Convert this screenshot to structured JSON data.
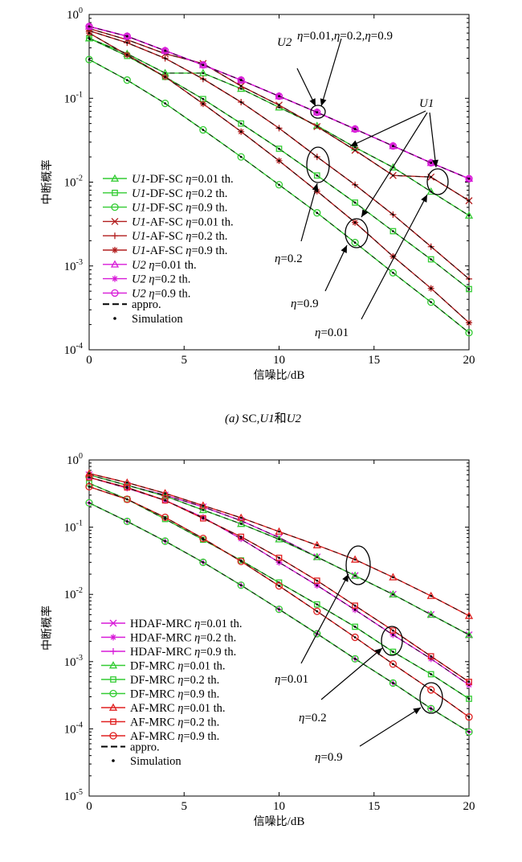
{
  "chart_data": [
    {
      "id": "a",
      "type": "line",
      "caption": "(a)  SC,U1和U2",
      "xlabel": "信噪比/dB",
      "ylabel": "中断概率",
      "xlim": [
        0,
        20
      ],
      "ylim": [
        0.0001,
        1
      ],
      "yscale": "log",
      "xticks": [
        "0",
        "5",
        "10",
        "15",
        "20"
      ],
      "yticks": [
        {
          "base": "10",
          "exp": "0"
        },
        {
          "base": "10",
          "exp": "-1"
        },
        {
          "base": "10",
          "exp": "-2"
        },
        {
          "base": "10",
          "exp": "-3"
        },
        {
          "base": "10",
          "exp": "-4"
        }
      ],
      "grid": false,
      "legend_position": "bottom-left",
      "x": [
        0,
        2,
        4,
        6,
        8,
        10,
        12,
        14,
        16,
        18,
        20
      ],
      "series": [
        {
          "name": "U1-DF-SC η=0.01 th.",
          "color": "#33cc33",
          "marker": "triangle",
          "values": [
            0.52,
            0.34,
            0.2,
            0.2,
            0.13,
            0.078,
            0.047,
            0.026,
            0.015,
            0.0077,
            0.004
          ]
        },
        {
          "name": "U1-DF-SC η=0.2 th.",
          "color": "#33cc33",
          "marker": "square",
          "values": [
            0.52,
            0.32,
            0.18,
            0.098,
            0.05,
            0.025,
            0.012,
            0.0057,
            0.0026,
            0.0012,
            0.00053
          ]
        },
        {
          "name": "U1-DF-SC η=0.9 th.",
          "color": "#33cc33",
          "marker": "circle",
          "values": [
            0.29,
            0.165,
            0.087,
            0.042,
            0.02,
            0.0093,
            0.0043,
            0.0019,
            0.00083,
            0.00037,
            0.00016
          ]
        },
        {
          "name": "U1-AF-SC η=0.01 th.",
          "color": "#b21e1e",
          "marker": "x",
          "values": [
            0.68,
            0.5,
            0.34,
            0.26,
            0.14,
            0.083,
            0.046,
            0.024,
            0.012,
            0.0115,
            0.006
          ]
        },
        {
          "name": "U1-AF-SC η=0.2 th.",
          "color": "#b21e1e",
          "marker": "plus",
          "values": [
            0.64,
            0.46,
            0.3,
            0.17,
            0.09,
            0.044,
            0.02,
            0.0093,
            0.0041,
            0.0017,
            0.0007
          ]
        },
        {
          "name": "U1-AF-SC η=0.9 th.",
          "color": "#b21e1e",
          "marker": "star",
          "values": [
            0.6,
            0.33,
            0.18,
            0.086,
            0.04,
            0.018,
            0.0078,
            0.0033,
            0.0013,
            0.00054,
            0.00021
          ]
        },
        {
          "name": "U2 η=0.01 th.",
          "color": "#d81bd8",
          "marker": "triangle",
          "values": [
            0.72,
            0.55,
            0.37,
            0.25,
            0.165,
            0.106,
            0.068,
            0.043,
            0.027,
            0.017,
            0.011
          ]
        },
        {
          "name": "U2 η=0.2 th.",
          "color": "#d81bd8",
          "marker": "star",
          "values": [
            0.72,
            0.55,
            0.37,
            0.25,
            0.165,
            0.106,
            0.068,
            0.043,
            0.027,
            0.017,
            0.011
          ]
        },
        {
          "name": "U2 η=0.9 th.",
          "color": "#d81bd8",
          "marker": "circle",
          "values": [
            0.72,
            0.55,
            0.37,
            0.25,
            0.165,
            0.106,
            0.068,
            0.043,
            0.027,
            0.017,
            0.011
          ]
        }
      ],
      "legend_extra": [
        {
          "name": "appro.",
          "style": "dashed"
        },
        {
          "name": "Simulation",
          "style": "dot"
        }
      ],
      "annotations": [
        {
          "text": "U2",
          "italic": true
        },
        {
          "text": "η=0.01,η=0.2,η=0.9"
        },
        {
          "text": "U1",
          "italic": true
        },
        {
          "text": "η=0.2"
        },
        {
          "text": "η=0.9"
        },
        {
          "text": "η=0.01"
        }
      ]
    },
    {
      "id": "b",
      "type": "line",
      "xlabel": "信噪比/dB",
      "ylabel": "中断概率",
      "xlim": [
        0,
        20
      ],
      "ylim": [
        1e-05,
        1
      ],
      "yscale": "log",
      "xticks": [
        "0",
        "5",
        "10",
        "15",
        "20"
      ],
      "yticks": [
        {
          "base": "10",
          "exp": "0"
        },
        {
          "base": "10",
          "exp": "-1"
        },
        {
          "base": "10",
          "exp": "-2"
        },
        {
          "base": "10",
          "exp": "-3"
        },
        {
          "base": "10",
          "exp": "-4"
        },
        {
          "base": "10",
          "exp": "-5"
        }
      ],
      "grid": false,
      "legend_position": "bottom-left",
      "x": [
        0,
        2,
        4,
        6,
        8,
        10,
        12,
        14,
        16,
        18,
        20
      ],
      "series": [
        {
          "name": "HDAF-MRC η=0.01 th.",
          "color": "#d81bd8",
          "marker": "x",
          "values": [
            0.6,
            0.42,
            0.3,
            0.2,
            0.125,
            0.07,
            0.036,
            0.019,
            0.01,
            0.005,
            0.0025
          ]
        },
        {
          "name": "HDAF-MRC η=0.2 th.",
          "color": "#d81bd8",
          "marker": "star",
          "values": [
            0.55,
            0.38,
            0.25,
            0.14,
            0.067,
            0.03,
            0.0136,
            0.0059,
            0.0025,
            0.0011,
            0.00045
          ]
        },
        {
          "name": "HDAF-MRC η=0.9 th.",
          "color": "#d81bd8",
          "marker": "plus",
          "values": [
            0.23,
            0.122,
            0.062,
            0.03,
            0.0137,
            0.006,
            0.0026,
            0.0011,
            0.00048,
            0.0002,
            9e-05
          ]
        },
        {
          "name": "DF-MRC η=0.01 th.",
          "color": "#33cc33",
          "marker": "triangle",
          "values": [
            0.6,
            0.42,
            0.29,
            0.18,
            0.112,
            0.066,
            0.036,
            0.019,
            0.01,
            0.005,
            0.0025
          ]
        },
        {
          "name": "DF-MRC η=0.2 th.",
          "color": "#33cc33",
          "marker": "square",
          "values": [
            0.45,
            0.26,
            0.132,
            0.065,
            0.032,
            0.015,
            0.0071,
            0.0033,
            0.0014,
            0.00065,
            0.00028
          ]
        },
        {
          "name": "DF-MRC η=0.9 th.",
          "color": "#33cc33",
          "marker": "circle",
          "values": [
            0.23,
            0.122,
            0.062,
            0.03,
            0.0137,
            0.006,
            0.0026,
            0.0011,
            0.00048,
            0.0002,
            9e-05
          ]
        },
        {
          "name": "AF-MRC η=0.01 th.",
          "color": "#e02020",
          "marker": "triangle",
          "values": [
            0.63,
            0.46,
            0.32,
            0.21,
            0.138,
            0.086,
            0.054,
            0.033,
            0.018,
            0.0095,
            0.0048
          ]
        },
        {
          "name": "AF-MRC η=0.2 th.",
          "color": "#e02020",
          "marker": "square",
          "values": [
            0.55,
            0.39,
            0.25,
            0.135,
            0.072,
            0.035,
            0.016,
            0.0068,
            0.0029,
            0.0012,
            0.0005
          ]
        },
        {
          "name": "AF-MRC η=0.9 th.",
          "color": "#e02020",
          "marker": "circle",
          "values": [
            0.4,
            0.26,
            0.14,
            0.068,
            0.031,
            0.0134,
            0.0056,
            0.0023,
            0.00092,
            0.00038,
            0.00015
          ]
        }
      ],
      "legend_extra": [
        {
          "name": "appro.",
          "style": "dashed"
        },
        {
          "name": "Simulation",
          "style": "dot"
        }
      ],
      "annotations": [
        {
          "text": "η=0.01"
        },
        {
          "text": "η=0.2"
        },
        {
          "text": "η=0.9"
        }
      ]
    }
  ]
}
